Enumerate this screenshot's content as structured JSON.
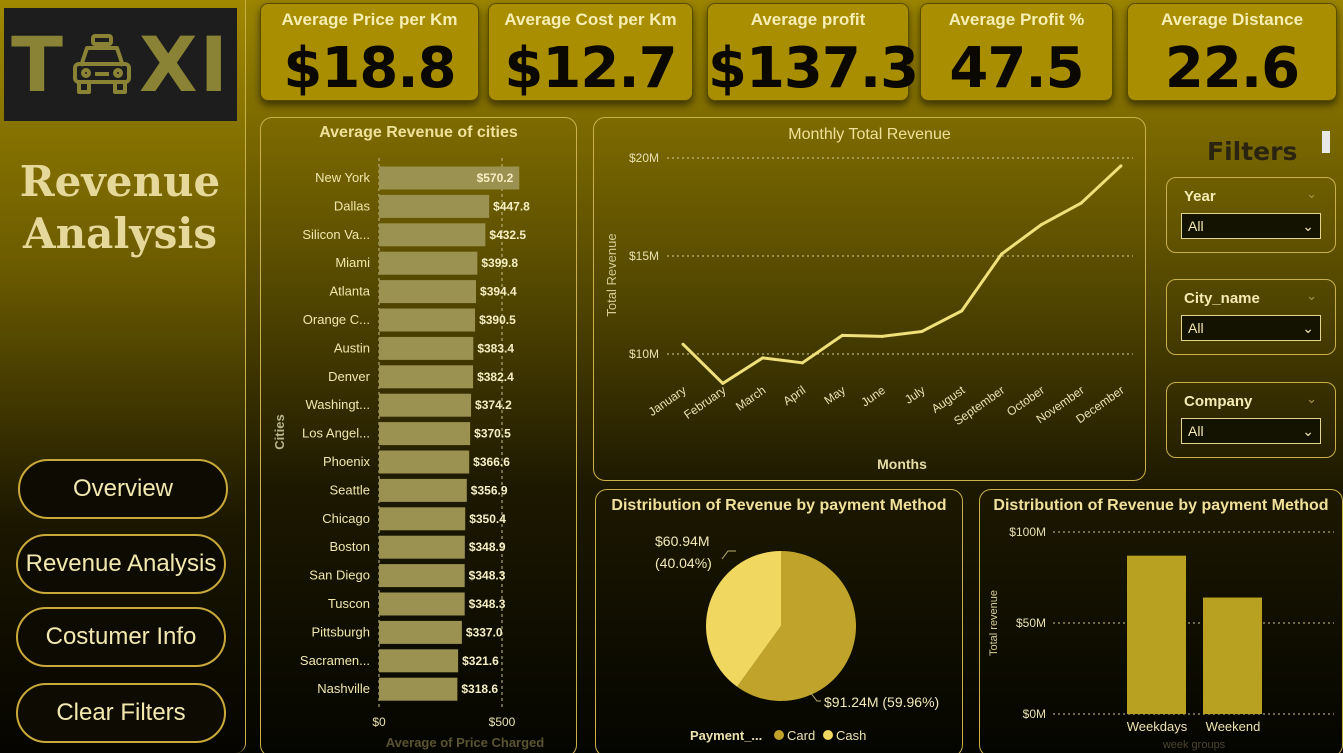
{
  "logo": {
    "left": "T",
    "right": "XI",
    "icon": "taxi-icon"
  },
  "page_title_line1": "Revenue",
  "page_title_line2": "Analysis",
  "nav": [
    "Overview",
    "Revenue Analysis",
    "Costumer Info",
    "Clear Filters"
  ],
  "kpis": [
    {
      "label": "Average Price per Km",
      "value": "$18.8"
    },
    {
      "label": "Average Cost per Km",
      "value": "$12.7"
    },
    {
      "label": "Average profit",
      "value": "$137.3"
    },
    {
      "label": "Average Profit %",
      "value": "47.5"
    },
    {
      "label": "Average Distance",
      "value": "22.6"
    }
  ],
  "filters": {
    "title": "Filters",
    "items": [
      {
        "label": "Year",
        "value": "All"
      },
      {
        "label": "City_name",
        "value": "All"
      },
      {
        "label": "Company",
        "value": "All"
      }
    ]
  },
  "colors": {
    "accent": "#b8a020",
    "bar": "#9b9150",
    "line": "#efe07a",
    "cash": "#f0d860",
    "card": "#bfa32a"
  },
  "chart_data": [
    {
      "type": "bar",
      "orientation": "horizontal",
      "title": "Average Revenue of cities",
      "ylabel": "Cities",
      "xlabel": "Average of Price Charged",
      "xlim": [
        0,
        600
      ],
      "xticks": [
        "$0",
        "$500"
      ],
      "categories": [
        "New York",
        "Dallas",
        "Silicon Va...",
        "Miami",
        "Atlanta",
        "Orange C...",
        "Austin",
        "Denver",
        "Washingt...",
        "Los Angel...",
        "Phoenix",
        "Seattle",
        "Chicago",
        "Boston",
        "San Diego",
        "Tuscon",
        "Pittsburgh",
        "Sacramen...",
        "Nashville"
      ],
      "values": [
        570.2,
        447.8,
        432.5,
        399.8,
        394.4,
        390.5,
        383.4,
        382.4,
        374.2,
        370.5,
        366.6,
        356.9,
        350.4,
        348.9,
        348.3,
        348.3,
        337.0,
        321.6,
        318.6
      ],
      "value_labels": [
        "$570.2",
        "$447.8",
        "$432.5",
        "$399.8",
        "$394.4",
        "$390.5",
        "$383.4",
        "$382.4",
        "$374.2",
        "$370.5",
        "$366.6",
        "$356.9",
        "$350.4",
        "$348.9",
        "$348.3",
        "$348.3",
        "$337.0",
        "$321.6",
        "$318.6"
      ]
    },
    {
      "type": "line",
      "title": "Monthly Total Revenue",
      "xlabel": "Months",
      "ylabel": "Total Revenue",
      "ylim": [
        7000000,
        21000000
      ],
      "yticks": [
        {
          "value": 10000000,
          "label": "$10M"
        },
        {
          "value": 15000000,
          "label": "$15M"
        },
        {
          "value": 20000000,
          "label": "$20M"
        }
      ],
      "grid": true,
      "x": [
        "January",
        "February",
        "March",
        "April",
        "May",
        "June",
        "July",
        "August",
        "September",
        "October",
        "November",
        "December"
      ],
      "values": [
        10500000,
        8500000,
        9800000,
        9550000,
        10950000,
        10900000,
        11150000,
        12200000,
        15100000,
        16600000,
        17700000,
        19600000
      ]
    },
    {
      "type": "pie",
      "title": "Distribution of Revenue by payment Method",
      "legend_title": "Payment_...",
      "legend_position": "bottom",
      "slices": [
        {
          "name": "Card",
          "value": 91.24,
          "label": "$91.24M (59.96%)"
        },
        {
          "name": "Cash",
          "value": 60.94,
          "label": "$60.94M",
          "label2": "(40.04%)"
        }
      ]
    },
    {
      "type": "bar",
      "title": "Distribution of Revenue by payment Method",
      "ylabel": "Total revenue",
      "xlabel": "week groups",
      "ylim": [
        0,
        100
      ],
      "yticks": [
        {
          "value": 0,
          "label": "$0M"
        },
        {
          "value": 50,
          "label": "$50M"
        },
        {
          "value": 100,
          "label": "$100M"
        }
      ],
      "grid": true,
      "categories": [
        "Weekdays",
        "Weekend"
      ],
      "values": [
        87,
        64
      ]
    }
  ]
}
